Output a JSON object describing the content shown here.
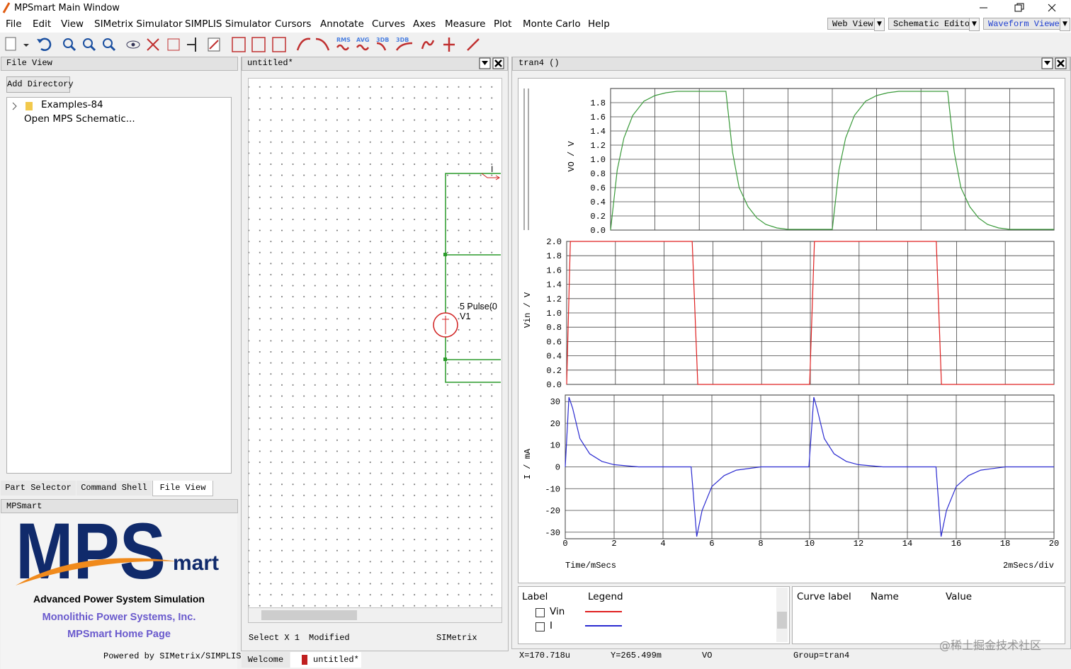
{
  "window": {
    "title": "MPSmart Main Window"
  },
  "menu": [
    "File",
    "Edit",
    "View",
    "SIMetrix Simulator",
    "SIMPLIS Simulator",
    "Cursors",
    "Annotate",
    "Curves",
    "Axes",
    "Measure",
    "Plot",
    "Monte Carlo",
    "Help"
  ],
  "view_tabs": [
    "Web View",
    "Schematic Editor",
    "Waveform Viewer"
  ],
  "toolbar_labels": [
    "RMS",
    "AVG",
    "3DB",
    "3DB"
  ],
  "file_view": {
    "title": "File View",
    "button": "Add Directory",
    "tree": [
      "Examples-84",
      "Open MPS Schematic..."
    ]
  },
  "left_tabs": [
    "Part Selector",
    "Command Shell",
    "File View"
  ],
  "mpsmart": {
    "title": "MPSmart",
    "logo_main": "MPS",
    "logo_sub": "mart",
    "tagline": "Advanced Power System Simulation",
    "company": "Monolithic Power Systems, Inc.",
    "home": "MPSmart Home Page",
    "powered": "Powered by SIMetrix/SIMPLIS"
  },
  "schematic": {
    "title": "untitled*",
    "labels": [
      "I",
      "5 Pulse(0",
      "V1"
    ],
    "status": [
      "Select X 1",
      "Modified",
      "SIMetrix"
    ],
    "tabs": [
      "Welcome",
      "untitled*"
    ]
  },
  "waveform": {
    "title": "tran4  ()",
    "x_label": "Time/mSecs",
    "x_scale": "2mSecs/div",
    "xlim": [
      0,
      20
    ],
    "xticks": [
      0,
      2,
      4,
      6,
      8,
      10,
      12,
      14,
      16,
      18,
      20
    ],
    "grid": true,
    "plots": [
      {
        "ylabel": "VO / V",
        "color": "#3a9a3a",
        "ylim": [
          0,
          2
        ],
        "yticks": [
          {
            "value": 0,
            "label": "0.0"
          },
          0.2,
          0.4,
          0.6,
          0.8,
          {
            "value": 1,
            "label": "1.0"
          },
          1.2,
          1.4,
          1.6,
          1.8
        ],
        "x": [
          0,
          0.3,
          0.6,
          1,
          1.5,
          2,
          2.5,
          3,
          5.2,
          5.5,
          5.8,
          6.2,
          6.6,
          7,
          7.5,
          8,
          10,
          10.3,
          10.6,
          11,
          11.5,
          12,
          12.5,
          13,
          15.2,
          15.5,
          15.8,
          16.2,
          16.6,
          17,
          17.5,
          18,
          20
        ],
        "values": [
          0,
          0.85,
          1.3,
          1.62,
          1.82,
          1.9,
          1.94,
          1.96,
          1.96,
          1.1,
          0.6,
          0.33,
          0.17,
          0.08,
          0.03,
          0.01,
          0.01,
          0.85,
          1.3,
          1.62,
          1.82,
          1.9,
          1.94,
          1.96,
          1.96,
          1.1,
          0.6,
          0.33,
          0.17,
          0.08,
          0.03,
          0.01,
          0.01
        ]
      },
      {
        "ylabel": "Vin / V",
        "color": "#e02020",
        "ylim": [
          0,
          2
        ],
        "yticks": [
          {
            "value": 0,
            "label": "0.0"
          },
          0.2,
          0.4,
          0.6,
          0.8,
          {
            "value": 1,
            "label": "1.0"
          },
          1.2,
          1.4,
          1.6,
          1.8,
          {
            "value": 2,
            "label": "2.0"
          }
        ],
        "x": [
          0,
          0.15,
          5.15,
          5.38,
          9.97,
          10.17,
          15.17,
          15.38,
          20
        ],
        "values": [
          0,
          2,
          2,
          0,
          0,
          2,
          2,
          0,
          0
        ]
      },
      {
        "ylabel": "I / mA",
        "color": "#2a2ad0",
        "ylim": [
          -33,
          33
        ],
        "yticks": [
          -30,
          -20,
          -10,
          0,
          10,
          20,
          30
        ],
        "x": [
          0,
          0.15,
          0.3,
          0.6,
          1,
          1.5,
          2,
          3,
          5.15,
          5.38,
          5.6,
          6,
          6.5,
          7,
          8,
          9.97,
          10.17,
          10.3,
          10.6,
          11,
          11.5,
          12,
          13,
          15.17,
          15.38,
          15.6,
          16,
          16.5,
          17,
          18,
          20
        ],
        "values": [
          0,
          32,
          27,
          13,
          6,
          2.5,
          1,
          0,
          0,
          -32,
          -20,
          -9,
          -4,
          -1.5,
          0,
          0,
          32,
          27,
          13,
          6,
          2.5,
          1,
          0,
          0,
          -32,
          -20,
          -9,
          -4,
          -1.5,
          0,
          0
        ]
      }
    ],
    "legend": {
      "headers": [
        "Label",
        "Legend"
      ],
      "entries": [
        {
          "name": "Vin",
          "color": "#e02020"
        },
        {
          "name": "I",
          "color": "#2a2ad0"
        }
      ]
    },
    "cursor_table": {
      "headers": [
        "Curve label",
        "Name",
        "Value"
      ]
    },
    "status": [
      "X=170.718u",
      "Y=265.499m",
      "VO",
      "Group=tran4"
    ]
  },
  "watermark": "@稀土掘金技术社区"
}
